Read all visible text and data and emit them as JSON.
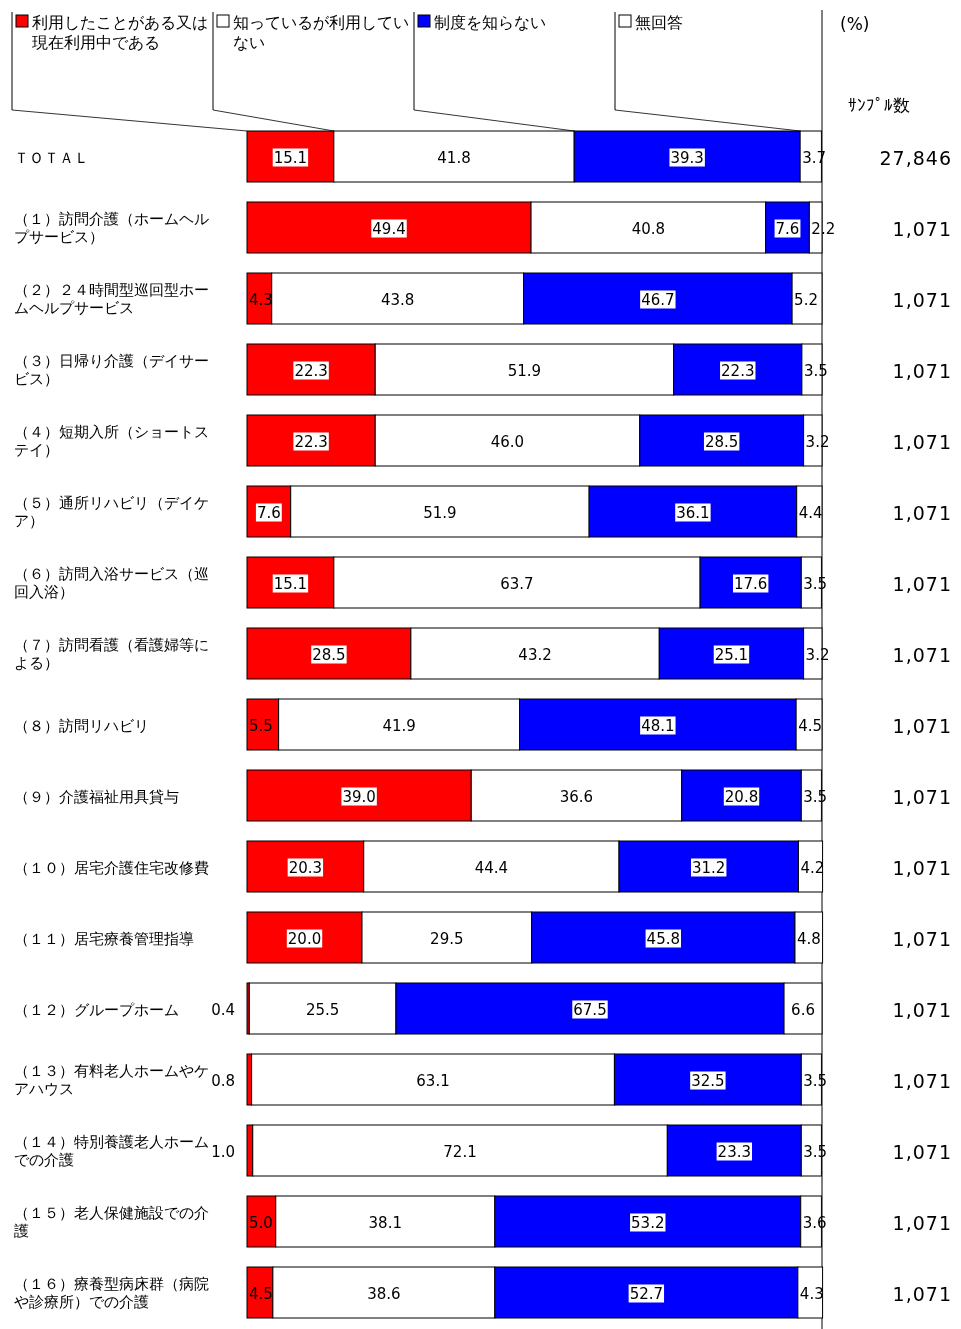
{
  "chart_data": {
    "type": "bar",
    "orientation": "horizontal",
    "stacked": true,
    "legend": "top",
    "categories": [
      "ＴＯＴＡＬ",
      "（１）訪問介護（ホームヘルプサービス）",
      "（２）２４時間型巡回型ホームヘルプサービス",
      "（３）日帰り介護（デイサービス）",
      "（４）短期入所（ショートステイ）",
      "（５）通所リハビリ（デイケア）",
      "（６）訪問入浴サービス（巡回入浴）",
      "（７）訪問看護（看護婦等による）",
      "（８）訪問リハビリ",
      "（９）介護福祉用具貸与",
      "（１０）居宅介護住宅改修費",
      "（１１）居宅療養管理指導",
      "（１２）グループホーム",
      "（１３）有料老人ホームやケアハウス",
      "（１４）特別養護老人ホームでの介護",
      "（１５）老人保健施設での介護",
      "（１６）療養型病床群（病院や診療所）での介護"
    ],
    "xlim": [
      0,
      100
    ],
    "series": [
      {
        "name": "利用したことがある又は現在利用中である",
        "color": "#ff0000",
        "values": [
          15.1,
          49.4,
          4.3,
          22.3,
          22.3,
          7.6,
          15.1,
          28.5,
          5.5,
          39.0,
          20.3,
          20.0,
          0.4,
          0.8,
          1.0,
          5.0,
          4.5
        ],
        "value_labels": [
          "15.1",
          "49.4",
          "4.3",
          "22.3",
          "22.3",
          "7.6",
          "15.1",
          "28.5",
          "5.5",
          "39.0",
          "20.3",
          "20.0",
          "0.4",
          "0.8",
          "1.0",
          "5.0",
          "4.5"
        ]
      },
      {
        "name": "知っているが利用していない",
        "color": "#ffffff",
        "values": [
          41.8,
          40.8,
          43.8,
          51.9,
          46.0,
          51.9,
          63.7,
          43.2,
          41.9,
          36.6,
          44.4,
          29.5,
          25.5,
          63.1,
          72.1,
          38.1,
          38.6
        ],
        "value_labels": [
          "41.8",
          "40.8",
          "43.8",
          "51.9",
          "46.0",
          "51.9",
          "63.7",
          "43.2",
          "41.9",
          "36.6",
          "44.4",
          "29.5",
          "25.5",
          "63.1",
          "72.1",
          "38.1",
          "38.6"
        ]
      },
      {
        "name": "制度を知らない",
        "color": "#0000ff",
        "values": [
          39.3,
          7.6,
          46.7,
          22.3,
          28.5,
          36.1,
          17.6,
          25.1,
          48.1,
          20.8,
          31.2,
          45.8,
          67.5,
          32.5,
          23.3,
          53.2,
          52.7
        ],
        "value_labels": [
          "39.3",
          "7.6",
          "46.7",
          "22.3",
          "28.5",
          "36.1",
          "17.6",
          "25.1",
          "48.1",
          "20.8",
          "31.2",
          "45.8",
          "67.5",
          "32.5",
          "23.3",
          "53.2",
          "52.7"
        ]
      },
      {
        "name": "無回答",
        "color": "#ffffff",
        "values": [
          3.7,
          2.2,
          5.2,
          3.5,
          3.2,
          4.4,
          3.5,
          3.2,
          4.5,
          3.5,
          4.2,
          4.8,
          6.6,
          3.5,
          3.5,
          3.6,
          4.3
        ],
        "value_labels": [
          "3.7",
          "2.2",
          "5.2",
          "3.5",
          "3.2",
          "4.4",
          "3.5",
          "3.2",
          "4.5",
          "3.5",
          "4.2",
          "4.8",
          "6.6",
          "3.5",
          "3.5",
          "3.6",
          "4.3"
        ]
      }
    ],
    "annotations": [
      "(%)",
      "ｻﾝﾌﾟﾙ数",
      "27,846",
      "1,071",
      "1,071",
      "1,071",
      "1,071",
      "1,071",
      "1,071",
      "1,071",
      "1,071",
      "1,071",
      "1,071",
      "1,071",
      "1,071",
      "1,071",
      "1,071",
      "1,071",
      "1,071"
    ]
  }
}
